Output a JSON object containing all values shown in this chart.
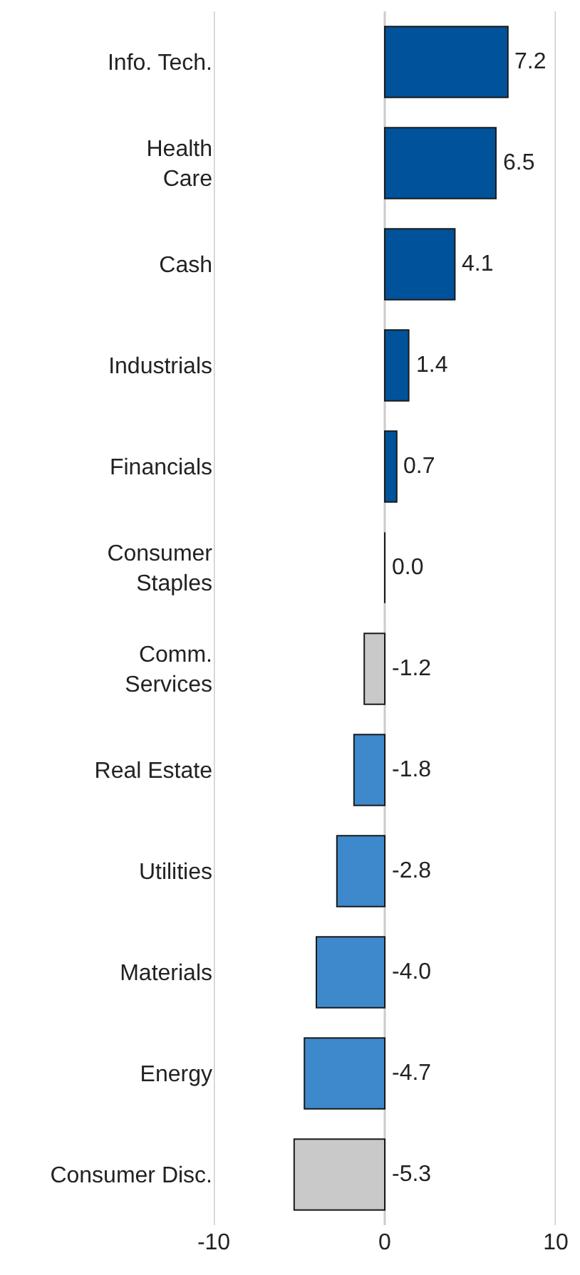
{
  "chart_data": {
    "type": "bar",
    "orientation": "horizontal",
    "categories": [
      "Info. Tech.",
      "Health\nCare",
      "Cash",
      "Industrials",
      "Financials",
      "Consumer\nStaples",
      "Comm.\nServices",
      "Real Estate",
      "Utilities",
      "Materials",
      "Energy",
      "Consumer Disc."
    ],
    "values": [
      7.2,
      6.5,
      4.1,
      1.4,
      0.7,
      0.0,
      -1.2,
      -1.8,
      -2.8,
      -4.0,
      -4.7,
      -5.3
    ],
    "colors": [
      "#00529b",
      "#00529b",
      "#00529b",
      "#00529b",
      "#00529b",
      "#1a1a1a",
      "#c8c9c8",
      "#3d89cc",
      "#3d89cc",
      "#3d89cc",
      "#3d89cc",
      "#c8c9c8"
    ],
    "value_labels": [
      "7.2",
      "6.5",
      "4.1",
      "1.4",
      "0.7",
      "0.0",
      "-1.2",
      "-1.8",
      "-2.8",
      "-4.0",
      "-4.7",
      "-5.3"
    ],
    "xlim": [
      -10,
      10
    ],
    "xticks": [
      -10,
      0,
      10
    ],
    "grid": "x"
  }
}
